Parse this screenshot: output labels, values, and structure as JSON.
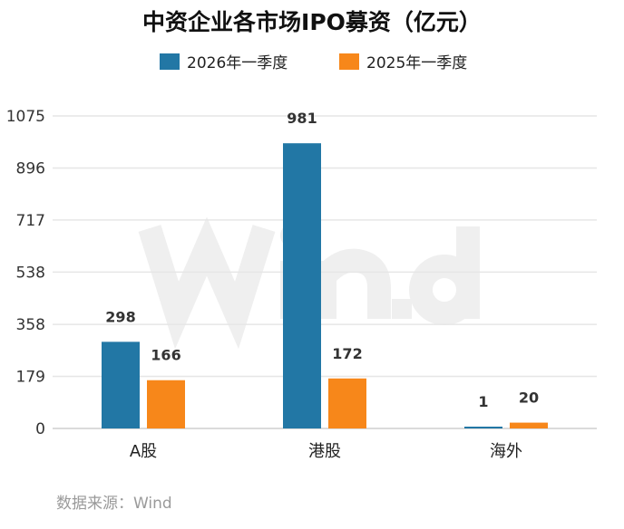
{
  "chart_data": {
    "type": "bar",
    "title": "中资企业各市场IPO募资（亿元）",
    "categories": [
      "A股",
      "港股",
      "海外"
    ],
    "series": [
      {
        "name": "2026年一季度",
        "values": [
          298,
          981,
          1
        ],
        "color": "#2277a5"
      },
      {
        "name": "2025年一季度",
        "values": [
          166,
          172,
          20
        ],
        "color": "#f7871a"
      }
    ],
    "yticks": [
      0,
      179,
      358,
      538,
      717,
      896,
      1075
    ],
    "ylim": [
      0,
      1075
    ],
    "grid": true,
    "legend": "top",
    "data_labels": true
  },
  "source": "数据来源：Wind",
  "watermark": "Wind"
}
